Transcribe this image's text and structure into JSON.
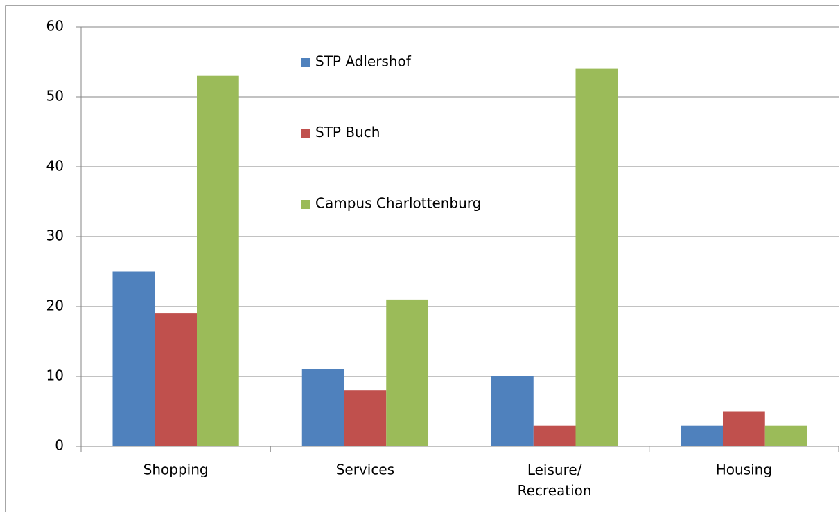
{
  "chart_data": {
    "type": "bar",
    "categories": [
      "Shopping",
      "Services",
      "Leisure/ Recreation",
      "Housing"
    ],
    "series": [
      {
        "name": "STP Adlershof",
        "color": "#4f81bd",
        "values": [
          25,
          11,
          10,
          3
        ]
      },
      {
        "name": "STP Buch",
        "color": "#c0504d",
        "values": [
          19,
          8,
          3,
          5
        ]
      },
      {
        "name": "Campus Charlottenburg",
        "color": "#9bbb59",
        "values": [
          53,
          21,
          54,
          3
        ]
      }
    ],
    "ylim": [
      0,
      60
    ],
    "yticks": [
      0,
      10,
      20,
      30,
      40,
      50,
      60
    ],
    "grid": true,
    "legend": "top"
  }
}
